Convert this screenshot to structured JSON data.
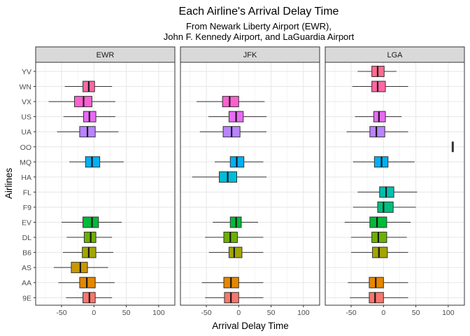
{
  "chart_data": {
    "type": "boxplot",
    "title": "Each Airline's Arrival Delay Time",
    "subtitle_lines": [
      "From Newark Liberty Airport (EWR),",
      "John F. Kennedy Airport, and LaGuardia Airport"
    ],
    "xlabel": "Arrival Delay Time",
    "ylabel": "Airlines",
    "xlim": [
      -90,
      125
    ],
    "x_ticks": [
      -50,
      0,
      50,
      100
    ],
    "categories": [
      "9E",
      "AA",
      "AS",
      "B6",
      "DL",
      "EV",
      "F9",
      "FL",
      "HA",
      "MQ",
      "OO",
      "UA",
      "US",
      "VX",
      "WN",
      "YV"
    ],
    "category_colors": {
      "9E": "#F8766D",
      "AA": "#E58700",
      "AS": "#C99800",
      "B6": "#A3A500",
      "DL": "#6BB100",
      "EV": "#00BA38",
      "F9": "#00BF7D",
      "FL": "#00C0AF",
      "HA": "#00BCD8",
      "MQ": "#00B0F6",
      "OO": "#619CFF",
      "UA": "#B983FF",
      "US": "#E76BF3",
      "VX": "#FD61D1",
      "WN": "#FF67A4",
      "YV": "#FF6C91"
    },
    "grid": true,
    "panels": [
      {
        "name": "EWR",
        "boxes": [
          {
            "carrier": "9E",
            "wmin": -43,
            "q1": -17,
            "median": -7,
            "q3": 2,
            "wmax": 28
          },
          {
            "carrier": "AA",
            "wmin": -55,
            "q1": -22,
            "median": -11,
            "q3": 2,
            "wmax": 32
          },
          {
            "carrier": "AS",
            "wmin": -62,
            "q1": -35,
            "median": -21,
            "q3": -10,
            "wmax": 22
          },
          {
            "carrier": "B6",
            "wmin": -48,
            "q1": -18,
            "median": -8,
            "q3": 3,
            "wmax": 30
          },
          {
            "carrier": "DL",
            "wmin": -42,
            "q1": -15,
            "median": -5,
            "q3": 3,
            "wmax": 28
          },
          {
            "carrier": "EV",
            "wmin": -50,
            "q1": -17,
            "median": -3,
            "q3": 7,
            "wmax": 43
          },
          {
            "carrier": "MQ",
            "wmin": -38,
            "q1": -13,
            "median": -3,
            "q3": 9,
            "wmax": 46
          },
          {
            "carrier": "UA",
            "wmin": -57,
            "q1": -22,
            "median": -10,
            "q3": 2,
            "wmax": 38
          },
          {
            "carrier": "US",
            "wmin": -47,
            "q1": -16,
            "median": -7,
            "q3": 3,
            "wmax": 33
          },
          {
            "carrier": "VX",
            "wmin": -70,
            "q1": -30,
            "median": -16,
            "q3": -3,
            "wmax": 33
          },
          {
            "carrier": "WN",
            "wmin": -45,
            "q1": -17,
            "median": -8,
            "q3": 1,
            "wmax": 28
          },
          {
            "carrier": "YV",
            "wmin": null,
            "q1": null,
            "median": null,
            "q3": null,
            "wmax": null
          }
        ]
      },
      {
        "name": "JFK",
        "boxes": [
          {
            "carrier": "9E",
            "wmin": -52,
            "q1": -22,
            "median": -12,
            "q3": 0,
            "wmax": 38
          },
          {
            "carrier": "AA",
            "wmin": -57,
            "q1": -23,
            "median": -12,
            "q3": 0,
            "wmax": 38
          },
          {
            "carrier": "B6",
            "wmin": -46,
            "q1": -15,
            "median": -7,
            "q3": 5,
            "wmax": 38
          },
          {
            "carrier": "DL",
            "wmin": -52,
            "q1": -23,
            "median": -13,
            "q3": -2,
            "wmax": 38
          },
          {
            "carrier": "EV",
            "wmin": -40,
            "q1": -13,
            "median": -4,
            "q3": 4,
            "wmax": 30
          },
          {
            "carrier": "HA",
            "wmin": -72,
            "q1": -30,
            "median": -17,
            "q3": -3,
            "wmax": 43
          },
          {
            "carrier": "MQ",
            "wmin": -37,
            "q1": -13,
            "median": -3,
            "q3": 8,
            "wmax": 38
          },
          {
            "carrier": "UA",
            "wmin": -60,
            "q1": -24,
            "median": -11,
            "q3": 2,
            "wmax": 43
          },
          {
            "carrier": "US",
            "wmin": -47,
            "q1": -15,
            "median": -4,
            "q3": 7,
            "wmax": 43
          },
          {
            "carrier": "VX",
            "wmin": -65,
            "q1": -25,
            "median": -14,
            "q3": 0,
            "wmax": 40
          }
        ]
      },
      {
        "name": "LGA",
        "boxes": [
          {
            "carrier": "9E",
            "wmin": -52,
            "q1": -22,
            "median": -13,
            "q3": 0,
            "wmax": 38
          },
          {
            "carrier": "AA",
            "wmin": -55,
            "q1": -22,
            "median": -12,
            "q3": 0,
            "wmax": 38
          },
          {
            "carrier": "B6",
            "wmin": -50,
            "q1": -17,
            "median": -7,
            "q3": 6,
            "wmax": 38
          },
          {
            "carrier": "DL",
            "wmin": -50,
            "q1": -18,
            "median": -8,
            "q3": 5,
            "wmax": 36
          },
          {
            "carrier": "EV",
            "wmin": -60,
            "q1": -21,
            "median": -10,
            "q3": 5,
            "wmax": 42
          },
          {
            "carrier": "F9",
            "wmin": -47,
            "q1": -9,
            "median": 0,
            "q3": 15,
            "wmax": 50
          },
          {
            "carrier": "FL",
            "wmin": -40,
            "q1": -6,
            "median": 4,
            "q3": 16,
            "wmax": 52
          },
          {
            "carrier": "MQ",
            "wmin": -47,
            "q1": -14,
            "median": -3,
            "q3": 7,
            "wmax": 48
          },
          {
            "carrier": "OO",
            "wmin": 107,
            "q1": 107,
            "median": 107,
            "q3": 107,
            "wmax": 107
          },
          {
            "carrier": "UA",
            "wmin": -57,
            "q1": -21,
            "median": -11,
            "q3": 2,
            "wmax": 38
          },
          {
            "carrier": "US",
            "wmin": -44,
            "q1": -15,
            "median": -7,
            "q3": 3,
            "wmax": 28
          },
          {
            "carrier": "WN",
            "wmin": -48,
            "q1": -18,
            "median": -9,
            "q3": 3,
            "wmax": 38
          },
          {
            "carrier": "YV",
            "wmin": -40,
            "q1": -18,
            "median": -9,
            "q3": 1,
            "wmax": 20
          }
        ]
      }
    ]
  }
}
